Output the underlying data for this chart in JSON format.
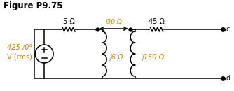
{
  "title": "Figure P9.75",
  "title_fontsize": 8.5,
  "title_fontweight": "bold",
  "bg_color": "#ffffff",
  "line_color": "#000000",
  "label_color": "#c8820a",
  "source_voltage": "425 /0°",
  "source_voltage2": "V (rms)",
  "label_5ohm": "5 Ω",
  "label_j30ohm": "j30 Ω",
  "label_45ohm": "45 Ω",
  "label_j6ohm": "j6 Ω",
  "label_j150ohm": "j150 Ω",
  "terminal_c": "c",
  "terminal_d": "d"
}
